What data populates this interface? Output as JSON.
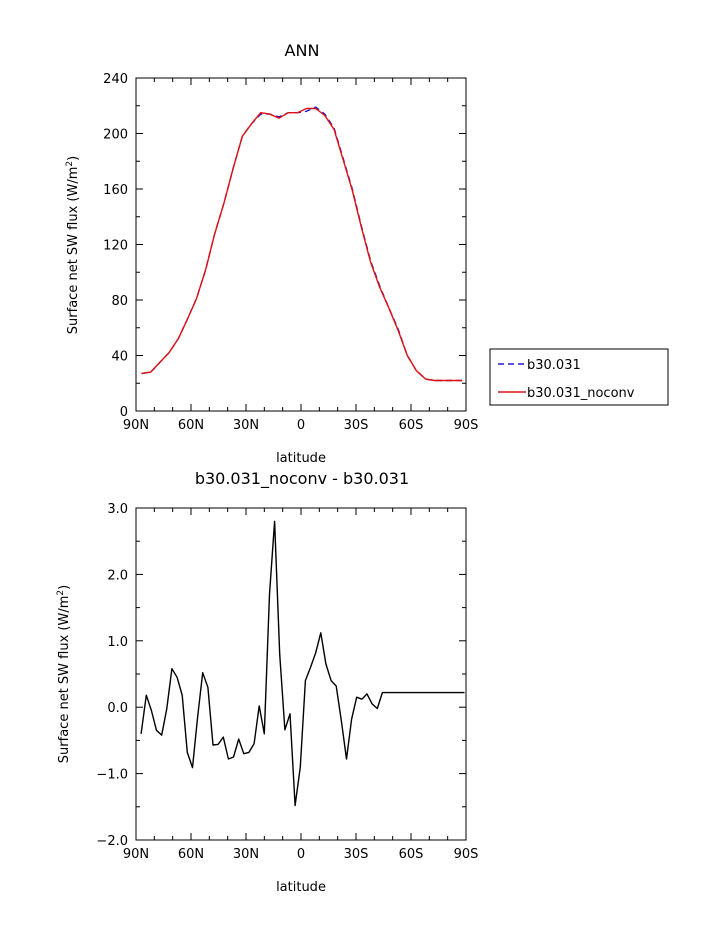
{
  "colors": {
    "series1": "#1f1fd0",
    "series2": "#e01010",
    "diff": "#000000"
  },
  "chart_data": [
    {
      "type": "line",
      "title": "ANN",
      "xlabel": "latitude",
      "ylabel": "Surface net SW flux (W/m",
      "ylabel_sup": "2",
      "ylabel_end": ")",
      "xlim": [
        90,
        -90
      ],
      "ylim": [
        0,
        240
      ],
      "xticks": [
        {
          "v": 90,
          "label": "90N"
        },
        {
          "v": 60,
          "label": "60N"
        },
        {
          "v": 30,
          "label": "30N"
        },
        {
          "v": 0,
          "label": "0"
        },
        {
          "v": -30,
          "label": "30S"
        },
        {
          "v": -60,
          "label": "60S"
        },
        {
          "v": -90,
          "label": "90S"
        }
      ],
      "yticks": [
        {
          "v": 0,
          "label": "0"
        },
        {
          "v": 40,
          "label": "40"
        },
        {
          "v": 80,
          "label": "80"
        },
        {
          "v": 120,
          "label": "120"
        },
        {
          "v": 160,
          "label": "160"
        },
        {
          "v": 200,
          "label": "200"
        },
        {
          "v": 240,
          "label": "240"
        }
      ],
      "legend": {
        "placement": "right",
        "entries": [
          "b30.031",
          "b30.031_noconv"
        ]
      },
      "x": [
        87,
        82,
        77,
        72,
        67,
        62,
        57,
        52,
        47,
        42,
        37,
        32,
        27,
        22,
        17,
        12,
        7,
        2,
        -3,
        -8,
        -13,
        -18,
        -23,
        -28,
        -33,
        -38,
        -43,
        -48,
        -53,
        -58,
        -63,
        -68,
        -73,
        -78,
        -83,
        -88
      ],
      "series": [
        {
          "name": "b30.031",
          "style": "dashed",
          "color": "#1f1fd0",
          "values": [
            27,
            28,
            35,
            42,
            52,
            66,
            81,
            102,
            128,
            150,
            175,
            198,
            207,
            214,
            214,
            212,
            215,
            215,
            216,
            219,
            214,
            204,
            182,
            160,
            133,
            108,
            90,
            74,
            59,
            40,
            29,
            23,
            22,
            22,
            22,
            22
          ]
        },
        {
          "name": "b30.031_noconv",
          "style": "solid",
          "color": "#e01010",
          "values": [
            27,
            28,
            35,
            42,
            52,
            66,
            81,
            102,
            128,
            150,
            175,
            198,
            207,
            215,
            214,
            211,
            215,
            215,
            218,
            218,
            213,
            203,
            181,
            159,
            132,
            107,
            89,
            74,
            58,
            40,
            29,
            23,
            22,
            22,
            22,
            22
          ]
        }
      ]
    },
    {
      "type": "line",
      "title": "b30.031_noconv - b30.031",
      "xlabel": "latitude",
      "ylabel": "Surface net SW flux (W/m",
      "ylabel_sup": "2",
      "ylabel_end": ")",
      "xlim": [
        90,
        -90
      ],
      "ylim": [
        -2.0,
        3.0
      ],
      "xticks": [
        {
          "v": 90,
          "label": "90N"
        },
        {
          "v": 60,
          "label": "60N"
        },
        {
          "v": 30,
          "label": "30N"
        },
        {
          "v": 0,
          "label": "0"
        },
        {
          "v": -30,
          "label": "30S"
        },
        {
          "v": -60,
          "label": "60S"
        },
        {
          "v": -90,
          "label": "90S"
        }
      ],
      "yticks": [
        {
          "v": -2.0,
          "label": "−2.0"
        },
        {
          "v": -1.0,
          "label": "−1.0"
        },
        {
          "v": 0.0,
          "label": "0.0"
        },
        {
          "v": 1.0,
          "label": "1.0"
        },
        {
          "v": 2.0,
          "label": "2.0"
        },
        {
          "v": 3.0,
          "label": "3.0"
        }
      ],
      "x": [
        87.2,
        84.4,
        81.6,
        78.8,
        76.0,
        73.2,
        70.4,
        67.6,
        64.8,
        62.0,
        59.2,
        56.4,
        53.6,
        50.8,
        48.0,
        45.2,
        42.4,
        39.6,
        36.8,
        34.0,
        31.2,
        28.4,
        25.6,
        22.8,
        20.0,
        17.2,
        14.4,
        11.6,
        8.8,
        6.0,
        3.2,
        0.4,
        -2.4,
        -5.2,
        -8.0,
        -10.8,
        -13.6,
        -16.4,
        -19.2,
        -22.0,
        -24.8,
        -27.6,
        -30.4,
        -33.2,
        -36.0,
        -38.8,
        -41.6,
        -44.4,
        -47.2,
        -50.0,
        -52.8,
        -55.6,
        -58.4,
        -61.2,
        -64.0,
        -66.8,
        -69.6,
        -72.4,
        -75.2,
        -78.0,
        -80.8,
        -83.6,
        -86.4,
        -89.2
      ],
      "series": [
        {
          "name": "",
          "style": "solid",
          "color": "#000000",
          "values": [
            -0.4,
            0.18,
            -0.05,
            -0.35,
            -0.42,
            -0.02,
            0.58,
            0.45,
            0.18,
            -0.68,
            -0.91,
            -0.15,
            0.52,
            0.3,
            -0.57,
            -0.56,
            -0.45,
            -0.78,
            -0.75,
            -0.48,
            -0.7,
            -0.68,
            -0.55,
            0.02,
            -0.4,
            1.7,
            2.8,
            0.8,
            -0.34,
            -0.1,
            -1.48,
            -0.9,
            0.4,
            0.6,
            0.82,
            1.12,
            0.65,
            0.4,
            0.32,
            -0.2,
            -0.78,
            -0.18,
            0.15,
            0.12,
            0.2,
            0.05,
            -0.02,
            0.22,
            0.22,
            0.22,
            0.22,
            0.22,
            0.22,
            0.22,
            0.22,
            0.22,
            0.22,
            0.22,
            0.22,
            0.22,
            0.22,
            0.22,
            0.22,
            0.22
          ]
        }
      ]
    }
  ]
}
